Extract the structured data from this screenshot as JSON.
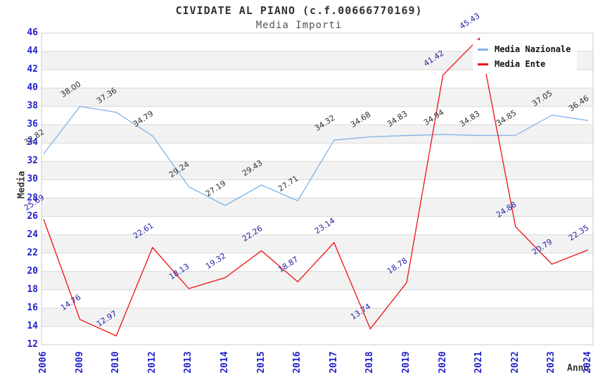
{
  "chart_data": {
    "type": "line",
    "title": "CIVIDATE AL PIANO (c.f.00666770169)",
    "subtitle": "Media Importi",
    "xlabel": "Anno",
    "ylabel": "Media",
    "ylim": [
      12,
      46
    ],
    "ytick_step": 2,
    "grid": true,
    "legend_position": "top-right",
    "categories": [
      "2006",
      "2009",
      "2010",
      "2012",
      "2013",
      "2014",
      "2015",
      "2016",
      "2017",
      "2018",
      "2019",
      "2020",
      "2021",
      "2022",
      "2023",
      "2024"
    ],
    "series": [
      {
        "name": "Media Nazionale",
        "color": "#7fb3e6",
        "label_color": "#303030",
        "values": [
          32.82,
          38.0,
          37.36,
          34.79,
          29.24,
          27.19,
          29.43,
          27.71,
          34.32,
          34.68,
          34.83,
          34.94,
          34.83,
          34.85,
          37.05,
          36.46
        ]
      },
      {
        "name": "Media Ente",
        "color": "#ee1111",
        "label_color": "#2222aa",
        "values": [
          25.69,
          14.76,
          12.97,
          22.61,
          18.13,
          19.32,
          22.26,
          18.87,
          23.14,
          13.74,
          18.78,
          41.42,
          45.43,
          24.88,
          20.79,
          22.35
        ]
      }
    ],
    "styles": {
      "tick_color": "#2222cc",
      "grid_color": "#d9d9d9",
      "band_color": "#f2f2f2",
      "border_color": "#cccccc",
      "background": "#ffffff"
    }
  }
}
